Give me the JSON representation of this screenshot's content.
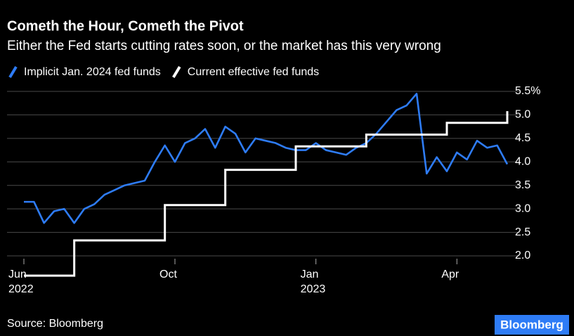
{
  "chart_data": {
    "type": "line",
    "title": "Cometh the Hour, Cometh the Pivot",
    "subtitle": "Either the Fed starts cutting rates soon, or the market has this very wrong",
    "source": "Source: Bloomberg",
    "logo": "Bloomberg",
    "categories": [
      "Jun 2022",
      null,
      null,
      null,
      null,
      null,
      null,
      null,
      null,
      null,
      null,
      null,
      null,
      null,
      null,
      "Oct",
      null,
      null,
      null,
      null,
      null,
      null,
      null,
      null,
      null,
      null,
      null,
      null,
      null,
      "Jan 2023",
      null,
      null,
      null,
      null,
      null,
      null,
      null,
      null,
      null,
      null,
      null,
      null,
      null,
      "Apr",
      null,
      null,
      null,
      null,
      null
    ],
    "series": [
      {
        "name": "Implicit Jan. 2024 fed funds",
        "color": "#2e7cf6",
        "step": false,
        "values": [
          3.15,
          3.15,
          2.7,
          2.95,
          3.0,
          2.7,
          3.0,
          3.1,
          3.3,
          3.4,
          3.5,
          3.55,
          3.6,
          4.0,
          4.35,
          4.0,
          4.4,
          4.5,
          4.7,
          4.3,
          4.75,
          4.6,
          4.2,
          4.5,
          4.45,
          4.4,
          4.3,
          4.25,
          4.25,
          4.4,
          4.25,
          4.2,
          4.15,
          4.3,
          4.4,
          4.6,
          4.85,
          5.1,
          5.2,
          5.45,
          3.75,
          4.1,
          3.8,
          4.2,
          4.05,
          4.45,
          4.3,
          4.35,
          3.95
        ]
      },
      {
        "name": "Current effective fed funds",
        "color": "#ffffff",
        "step": true,
        "values": [
          1.58,
          1.58,
          1.58,
          1.58,
          1.58,
          2.33,
          2.33,
          2.33,
          2.33,
          2.33,
          2.33,
          2.33,
          2.33,
          2.33,
          3.08,
          3.08,
          3.08,
          3.08,
          3.08,
          3.08,
          3.83,
          3.83,
          3.83,
          3.83,
          3.83,
          3.83,
          3.83,
          4.33,
          4.33,
          4.33,
          4.33,
          4.33,
          4.33,
          4.33,
          4.58,
          4.58,
          4.58,
          4.58,
          4.58,
          4.58,
          4.58,
          4.58,
          4.83,
          4.83,
          4.83,
          4.83,
          4.83,
          4.83,
          5.08
        ]
      }
    ],
    "ylim": [
      1.55,
      5.6
    ],
    "yticks": [
      {
        "value": 2.0,
        "label": "2.0"
      },
      {
        "value": 2.5,
        "label": "2.5"
      },
      {
        "value": 3.0,
        "label": "3.0"
      },
      {
        "value": 3.5,
        "label": "3.5"
      },
      {
        "value": 4.0,
        "label": "4.0"
      },
      {
        "value": 4.5,
        "label": "4.5"
      },
      {
        "value": 5.0,
        "label": "5.0"
      },
      {
        "value": 5.5,
        "label": "5.5%"
      }
    ],
    "grid": true
  }
}
